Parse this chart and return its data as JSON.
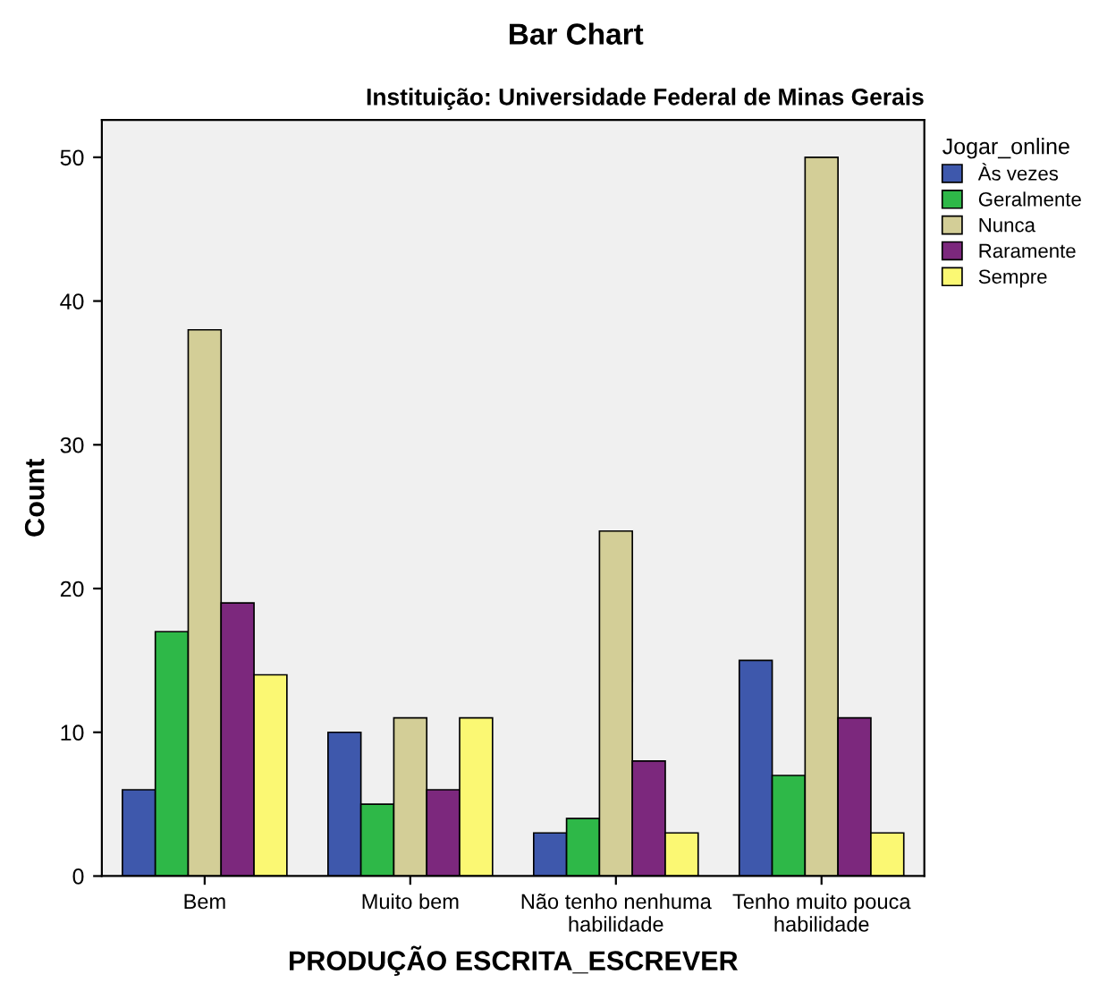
{
  "chart_data": {
    "type": "bar",
    "title": "Bar Chart",
    "subtitle": "Instituição: Universidade Federal de Minas Gerais",
    "xlabel": "PRODUÇÃO ESCRITA_ESCREVER",
    "ylabel": "Count",
    "legend_title": "Jogar_online",
    "categories": [
      "Bem",
      "Muito bem",
      "Não tenho nenhuma\nhabilidade",
      "Tenho muito pouca\nhabilidade"
    ],
    "series": [
      {
        "name": "Às vezes",
        "color": "#3e58ac",
        "values": [
          6,
          10,
          3,
          15
        ]
      },
      {
        "name": "Geralmente",
        "color": "#2eb848",
        "values": [
          17,
          5,
          4,
          7
        ]
      },
      {
        "name": "Nunca",
        "color": "#d3ce97",
        "values": [
          38,
          11,
          24,
          50
        ]
      },
      {
        "name": "Raramente",
        "color": "#7c287d",
        "values": [
          19,
          6,
          8,
          11
        ]
      },
      {
        "name": "Sempre",
        "color": "#fbf873",
        "values": [
          14,
          11,
          3,
          3
        ]
      }
    ],
    "ylim": [
      0,
      52.6
    ],
    "yticks": [
      0,
      10,
      20,
      30,
      40,
      50
    ],
    "grid": false,
    "legend": "top right"
  }
}
